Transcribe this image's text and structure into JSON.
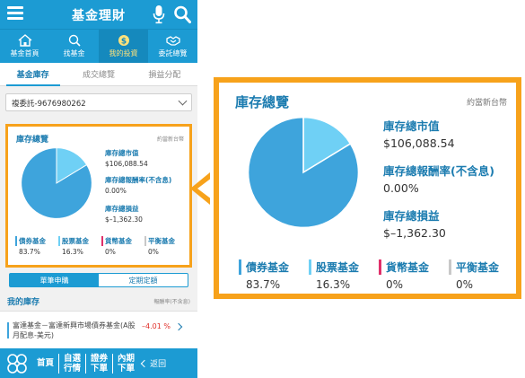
{
  "app": {
    "title": "基金理財"
  },
  "nav": [
    {
      "label": "基金首頁",
      "icon": "home-icon"
    },
    {
      "label": "找基金",
      "icon": "search-icon"
    },
    {
      "label": "我的投資",
      "icon": "money-icon",
      "active": true
    },
    {
      "label": "委託總覽",
      "icon": "handshake-icon"
    }
  ],
  "subtabs": [
    {
      "label": "基金庫存",
      "active": true
    },
    {
      "label": "成交總覽"
    },
    {
      "label": "損益分配"
    }
  ],
  "account": {
    "value": "複委託-9676980262"
  },
  "summary": {
    "title": "庫存總覽",
    "unit": "約當新台幣",
    "market_value_label": "庫存總市值",
    "market_value": "$106,088.54",
    "return_rate_label": "庫存總報酬率(不含息)",
    "return_rate": "0.00%",
    "pnl_label": "庫存總損益",
    "pnl": "$–1,362.30",
    "legend": [
      {
        "name": "債券基金",
        "pct": "83.7%",
        "color": "#3ea4dc"
      },
      {
        "name": "股票基金",
        "pct": "16.3%",
        "color": "#6fd0f5"
      },
      {
        "name": "貨幣基金",
        "pct": "0%",
        "color": "#e0306a"
      },
      {
        "name": "平衡基金",
        "pct": "0%",
        "color": "#c8c8c8"
      }
    ]
  },
  "chart_data": {
    "type": "pie",
    "categories": [
      "債券基金",
      "股票基金",
      "貨幣基金",
      "平衡基金"
    ],
    "values": [
      83.7,
      16.3,
      0,
      0
    ]
  },
  "switch": {
    "left": "單筆申購",
    "right": "定期定額"
  },
  "my_holdings": {
    "title": "我的庫存",
    "note": "報酬率(不含息)",
    "fund_name": "富達基金－富達新興市場債券基金(A股月配息-美元)",
    "fund_return": "–4.01 %"
  },
  "bottom": {
    "items": [
      "首頁",
      "自選\n行情",
      "證券\n下單",
      "內期\n下單"
    ],
    "back": "返回"
  },
  "colors": {
    "brand": "#1c9bd3",
    "highlight": "#f7a21b",
    "bond": "#3ea4dc",
    "equity": "#6fd0f5"
  }
}
